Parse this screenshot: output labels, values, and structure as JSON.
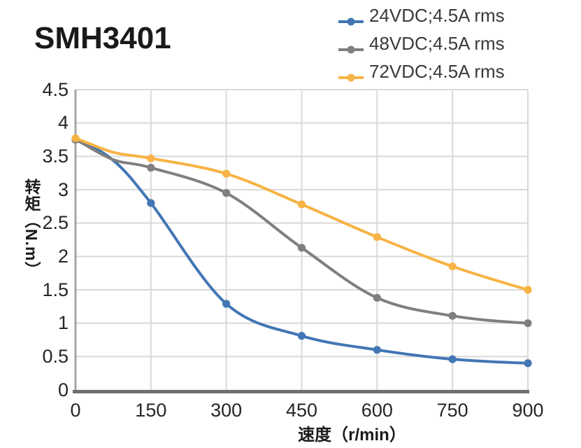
{
  "title": "SMH3401",
  "legend": {
    "items": [
      {
        "label": "24VDC;4.5A rms",
        "color": "#4276B4"
      },
      {
        "label": "48VDC;4.5A rms",
        "color": "#7F7F7F"
      },
      {
        "label": "72VDC;4.5A rms",
        "color": "#F7B344"
      }
    ]
  },
  "chart_data": {
    "type": "line",
    "title": "SMH3401",
    "xlabel": "速度（r/min）",
    "ylabel": "转矩（N.m）",
    "x": [
      0,
      150,
      300,
      450,
      600,
      750,
      900
    ],
    "series": [
      {
        "name": "24VDC;4.5A rms",
        "color": "#4276B4",
        "values": [
          3.75,
          2.8,
          1.29,
          0.81,
          0.6,
          0.46,
          0.4
        ],
        "curve_shape_samples": [
          {
            "x": 75,
            "value": 3.44
          }
        ]
      },
      {
        "name": "48VDC;4.5A rms",
        "color": "#7F7F7F",
        "values": [
          3.75,
          3.33,
          2.95,
          2.13,
          1.38,
          1.11,
          1.0
        ],
        "curve_shape_samples": [
          {
            "x": 75,
            "value": 3.45
          }
        ]
      },
      {
        "name": "72VDC;4.5A rms",
        "color": "#F7B344",
        "values": [
          3.77,
          3.47,
          3.24,
          2.78,
          2.29,
          1.85,
          1.5
        ],
        "curve_shape_samples": [
          {
            "x": 75,
            "value": 3.56
          }
        ]
      }
    ],
    "xlim": [
      0,
      900
    ],
    "ylim": [
      0,
      4.5
    ],
    "x_ticks": [
      "0",
      "150",
      "300",
      "450",
      "600",
      "750",
      "900"
    ],
    "y_ticks": [
      "0",
      "0.5",
      "1",
      "1.5",
      "2",
      "2.5",
      "3",
      "3.5",
      "4",
      "4.5"
    ],
    "grid": true,
    "smooth": true,
    "legend_position": "top-right",
    "colors": {
      "gridline": "#D9D9D9",
      "y_axis_line": "#A6A6A6",
      "x_axis_line": "#6F6F6F",
      "tick_label": "#262626"
    }
  }
}
